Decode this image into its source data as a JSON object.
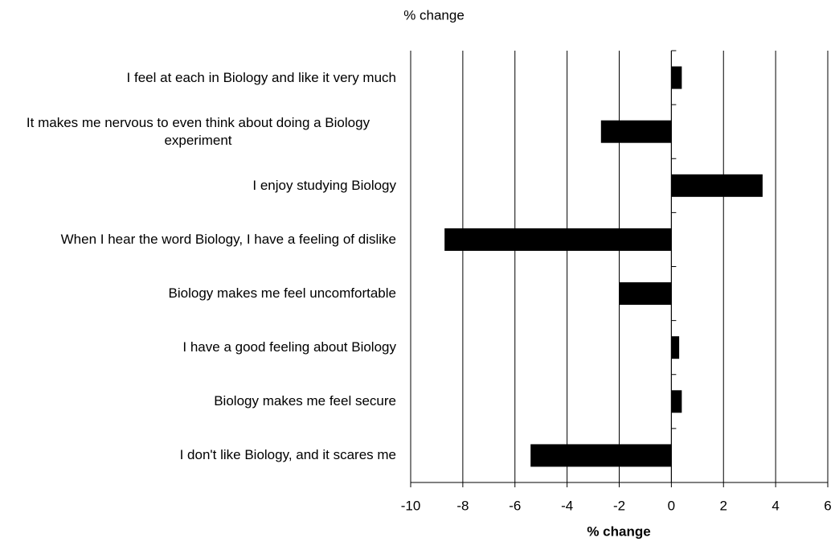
{
  "chart_data": {
    "type": "bar",
    "orientation": "horizontal",
    "title": "% change",
    "x_label": "% change",
    "categories": [
      "I feel at each in Biology and like it very much",
      "It makes me nervous to even think about doing a Biology experiment",
      "I enjoy studying Biology",
      "When I hear the word Biology, I have a feeling of dislike",
      "Biology makes me feel uncomfortable",
      "I have a good feeling about Biology",
      "Biology makes me feel secure",
      "I don't like Biology, and it scares me"
    ],
    "values": [
      0.4,
      -2.7,
      3.5,
      -8.7,
      -2.0,
      0.3,
      0.4,
      -5.4
    ],
    "color": "#000000",
    "xlim": [
      -10,
      6
    ],
    "xticks": [
      -10,
      -8,
      -6,
      -4,
      -2,
      0,
      2,
      4,
      6
    ],
    "grid": true
  }
}
